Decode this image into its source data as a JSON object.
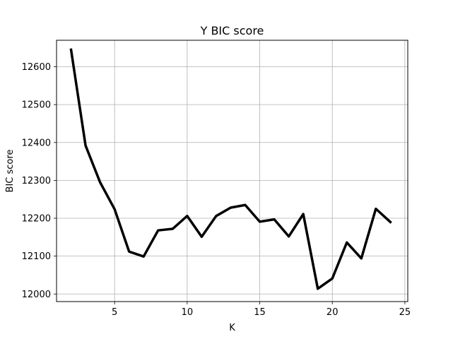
{
  "chart_data": {
    "type": "line",
    "title": "Y BIC score",
    "xlabel": "K",
    "ylabel": "BIC score",
    "xlim": [
      1.0,
      25.2
    ],
    "ylim": [
      11980,
      12670
    ],
    "xticks": [
      5,
      10,
      15,
      20,
      25
    ],
    "xtick_labels": [
      "5",
      "10",
      "15",
      "20",
      "25"
    ],
    "yticks": [
      12000,
      12100,
      12200,
      12300,
      12400,
      12500,
      12600
    ],
    "ytick_labels": [
      "12000",
      "12100",
      "12200",
      "12300",
      "12400",
      "12500",
      "12600"
    ],
    "grid": true,
    "series": [
      {
        "color": "#000000",
        "x": [
          2,
          3,
          4,
          5,
          6,
          7,
          8,
          9,
          10,
          11,
          12,
          13,
          14,
          15,
          16,
          17,
          18,
          19,
          20,
          21,
          22,
          23,
          24
        ],
        "y": [
          12645,
          12392,
          12295,
          12224,
          12112,
          12099,
          12168,
          12172,
          12206,
          12151,
          12206,
          12228,
          12235,
          12191,
          12197,
          12152,
          12211,
          12014,
          12041,
          12136,
          12094,
          12225,
          12190
        ]
      }
    ]
  }
}
